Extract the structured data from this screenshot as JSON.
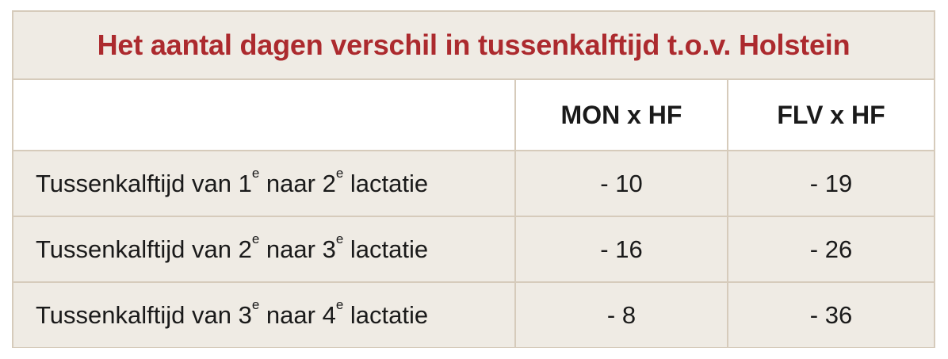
{
  "title": "Het aantal dagen verschil in tussenkalftijd t.o.v. Holstein",
  "columns": [
    "",
    "MON x HF",
    "FLV x HF"
  ],
  "rows": [
    {
      "label_parts": [
        "Tussenkalftijd van 1",
        "e",
        " naar 2",
        "e",
        " lactatie"
      ],
      "mon": "- 10",
      "flv": "- 19"
    },
    {
      "label_parts": [
        "Tussenkalftijd van 2",
        "e",
        " naar 3",
        "e",
        " lactatie"
      ],
      "mon": "- 16",
      "flv": "- 26"
    },
    {
      "label_parts": [
        "Tussenkalftijd van 3",
        "e",
        " naar 4",
        "e",
        " lactatie"
      ],
      "mon": "- 8",
      "flv": "- 36"
    }
  ],
  "colors": {
    "title": "#ac2a2e",
    "band": "#efebe4",
    "border": "#d6cbbb"
  }
}
